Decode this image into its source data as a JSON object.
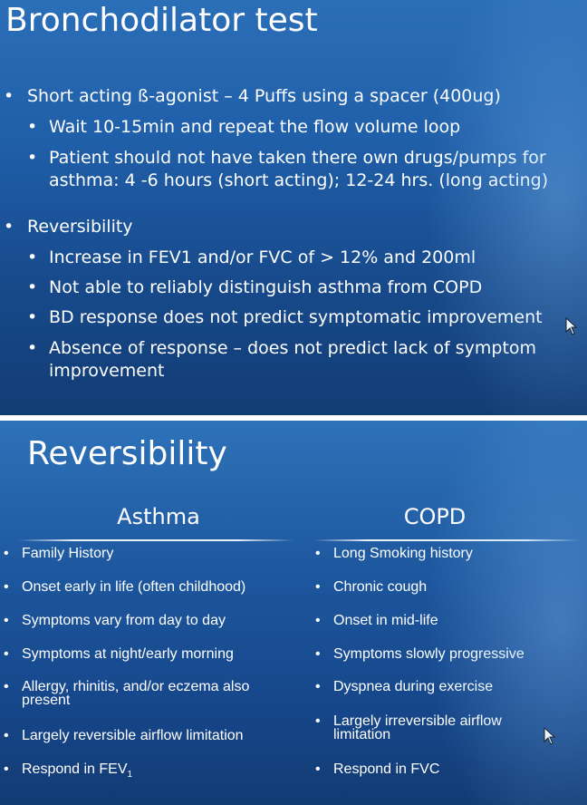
{
  "slide1": {
    "title": "Bronchodilator test",
    "bullets": [
      {
        "text": "Short acting ß-agonist – 4 Puffs using a spacer (400ug)",
        "sub": [
          "Wait 10-15min and repeat the flow volume loop",
          "Patient should not have taken there own drugs/pumps for asthma: 4 -6 hours (short acting); 12-24 hrs. (long acting)"
        ]
      },
      {
        "text": "Reversibility",
        "sub": [
          "Increase in FEV1 and/or FVC of > 12% and 200ml",
          "Not able to reliably distinguish asthma from COPD",
          "BD response does not predict symptomatic improvement",
          "Absence of response – does not predict lack of symptom improvement"
        ]
      }
    ]
  },
  "slide2": {
    "title": "Reversibility",
    "asthma_heading": "Asthma",
    "copd_heading": "COPD",
    "asthma_items": [
      "Family History",
      "Onset early in life (often childhood)",
      "Symptoms vary from day to day",
      "Symptoms at night/early morning",
      "Allergy, rhinitis, and/or eczema also present",
      "Largely reversible airflow limitation",
      "Respond in FEV",
      "1"
    ],
    "copd_items": [
      "Long Smoking history",
      "Chronic cough",
      "Onset in mid-life",
      "Symptoms slowly progressive",
      "Dyspnea during exercise",
      "Largely irreversible airflow limitation",
      "Respond in FVC"
    ]
  },
  "bullet_char": "•",
  "colors": {
    "text": "#ffffff",
    "bg_top": "#2b6fb8",
    "bg_bottom": "#123c74"
  },
  "icons": [
    "mouse-pointer-icon"
  ]
}
